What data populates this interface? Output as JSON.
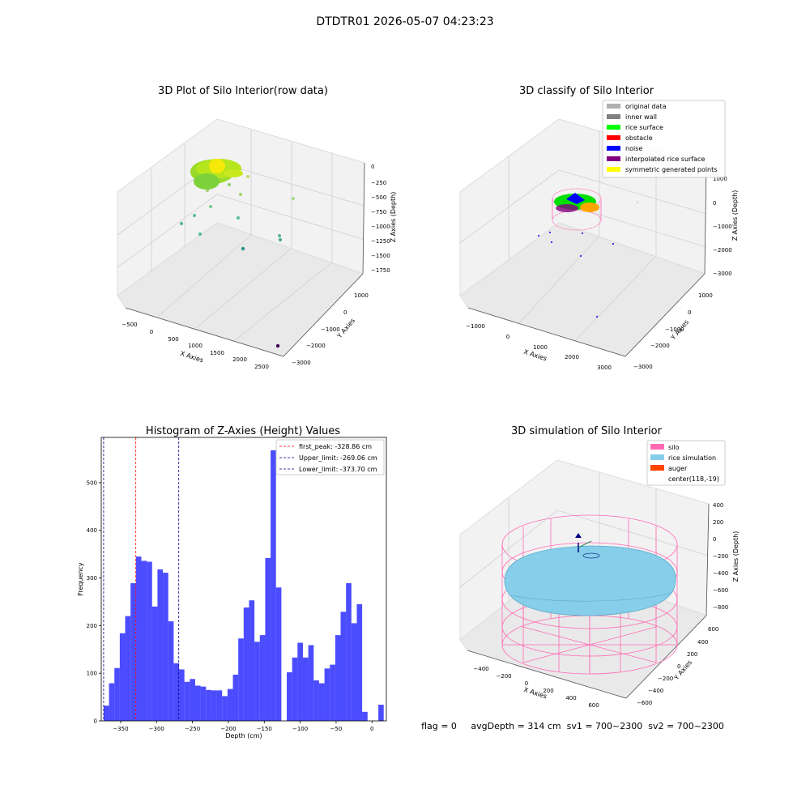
{
  "figure": {
    "suptitle": "DTDTR01 2026-05-07 04:23:23",
    "status_line": "flag = 0     avgDepth = 314 cm  sv1 = 700~2300  sv2 = 700~2300"
  },
  "colors": {
    "hist_bar": "#0000ff",
    "first_peak": "#ff0000",
    "limits": "#00008b",
    "silo": "#ff69b4",
    "rice_simulation": "#87ceeb",
    "auger": "#ff4500"
  },
  "chart_data": [
    {
      "type": "scatter3d",
      "title": "3D Plot of Silo Interior(row data)",
      "xlabel": "X Axies",
      "ylabel": "Y Axies",
      "zlabel": "Z Axies (Depth)",
      "x_ticks": [
        "−500",
        "0",
        "500",
        "1000",
        "1500",
        "2000",
        "2500"
      ],
      "y_ticks": [
        "1000",
        "0",
        "−1000",
        "−2000",
        "−3000"
      ],
      "z_ticks": [
        "0",
        "−250",
        "−500",
        "−750",
        "−1000",
        "−1250",
        "−1500",
        "−1750"
      ]
    },
    {
      "type": "scatter3d",
      "title": "3D classify of Silo Interior",
      "xlabel": "X Axies",
      "ylabel": "Y Axies",
      "zlabel": "Z Axies (Depth)",
      "x_ticks": [
        "−1000",
        "0",
        "1000",
        "2000",
        "3000"
      ],
      "y_ticks": [
        "1000",
        "0",
        "−1000",
        "−2000",
        "−3000"
      ],
      "z_ticks": [
        "1000",
        "0",
        "−1000",
        "−2000",
        "−3000"
      ],
      "legend": [
        {
          "label": "original data",
          "color": "#b0b0b0"
        },
        {
          "label": "inner wall",
          "color": "#808080"
        },
        {
          "label": "rice surface",
          "color": "#00ff00"
        },
        {
          "label": "obstacle",
          "color": "#ff0000"
        },
        {
          "label": "noise",
          "color": "#0000ff"
        },
        {
          "label": "interpolated rice surface",
          "color": "#800080"
        },
        {
          "label": "symmetric generated points",
          "color": "#ffff00"
        }
      ]
    },
    {
      "type": "bar",
      "title": "Histogram of Z-Axies (Height) Values",
      "xlabel": "Depth (cm)",
      "ylabel": "Frequency",
      "xlim": [
        -377,
        20
      ],
      "ylim": [
        0,
        595
      ],
      "x_ticks": [
        -350,
        -300,
        -250,
        -200,
        -150,
        -100,
        -50,
        0
      ],
      "x_tick_labels": [
        "−350",
        "−300",
        "−250",
        "−200",
        "−150",
        "−100",
        "−50",
        "0"
      ],
      "y_ticks": [
        0,
        100,
        200,
        300,
        400,
        500
      ],
      "bin_start": -373.7,
      "bin_width": 7.5,
      "values": [
        32,
        79,
        111,
        184,
        220,
        289,
        345,
        336,
        334,
        240,
        318,
        311,
        209,
        121,
        108,
        82,
        88,
        74,
        72,
        65,
        64,
        64,
        52,
        67,
        97,
        173,
        238,
        253,
        166,
        180,
        342,
        568,
        280,
        0,
        102,
        133,
        164,
        133,
        159,
        85,
        79,
        110,
        118,
        180,
        229,
        289,
        205,
        245,
        19,
        0,
        0,
        34
      ],
      "vlines": [
        {
          "x": -328.86,
          "label": "first_peak: -328.86 cm",
          "color": "#ff0000"
        },
        {
          "x": -269.06,
          "label": "Upper_limit: -269.06 cm",
          "color": "#00008b"
        },
        {
          "x": -373.7,
          "label": "Lower_limit: -373.70 cm",
          "color": "#00008b"
        }
      ]
    },
    {
      "type": "surface3d",
      "title": "3D simulation of Silo Interior",
      "xlabel": "X Axies",
      "ylabel": "Y Axies",
      "zlabel": "Z Axies (Depth)",
      "x_ticks": [
        "−400",
        "−200",
        "0",
        "200",
        "400",
        "600"
      ],
      "y_ticks": [
        "600",
        "400",
        "200",
        "0",
        "−200",
        "−400",
        "−600"
      ],
      "z_ticks": [
        "400",
        "200",
        "0",
        "−200",
        "−400",
        "−600",
        "−800"
      ],
      "legend": [
        {
          "label": "silo",
          "color": "#ff69b4"
        },
        {
          "label": "rice simulation",
          "color": "#87ceeb"
        },
        {
          "label": "auger",
          "color": "#ff4500"
        },
        {
          "label": "center(118,-19)",
          "color": ""
        }
      ]
    }
  ]
}
